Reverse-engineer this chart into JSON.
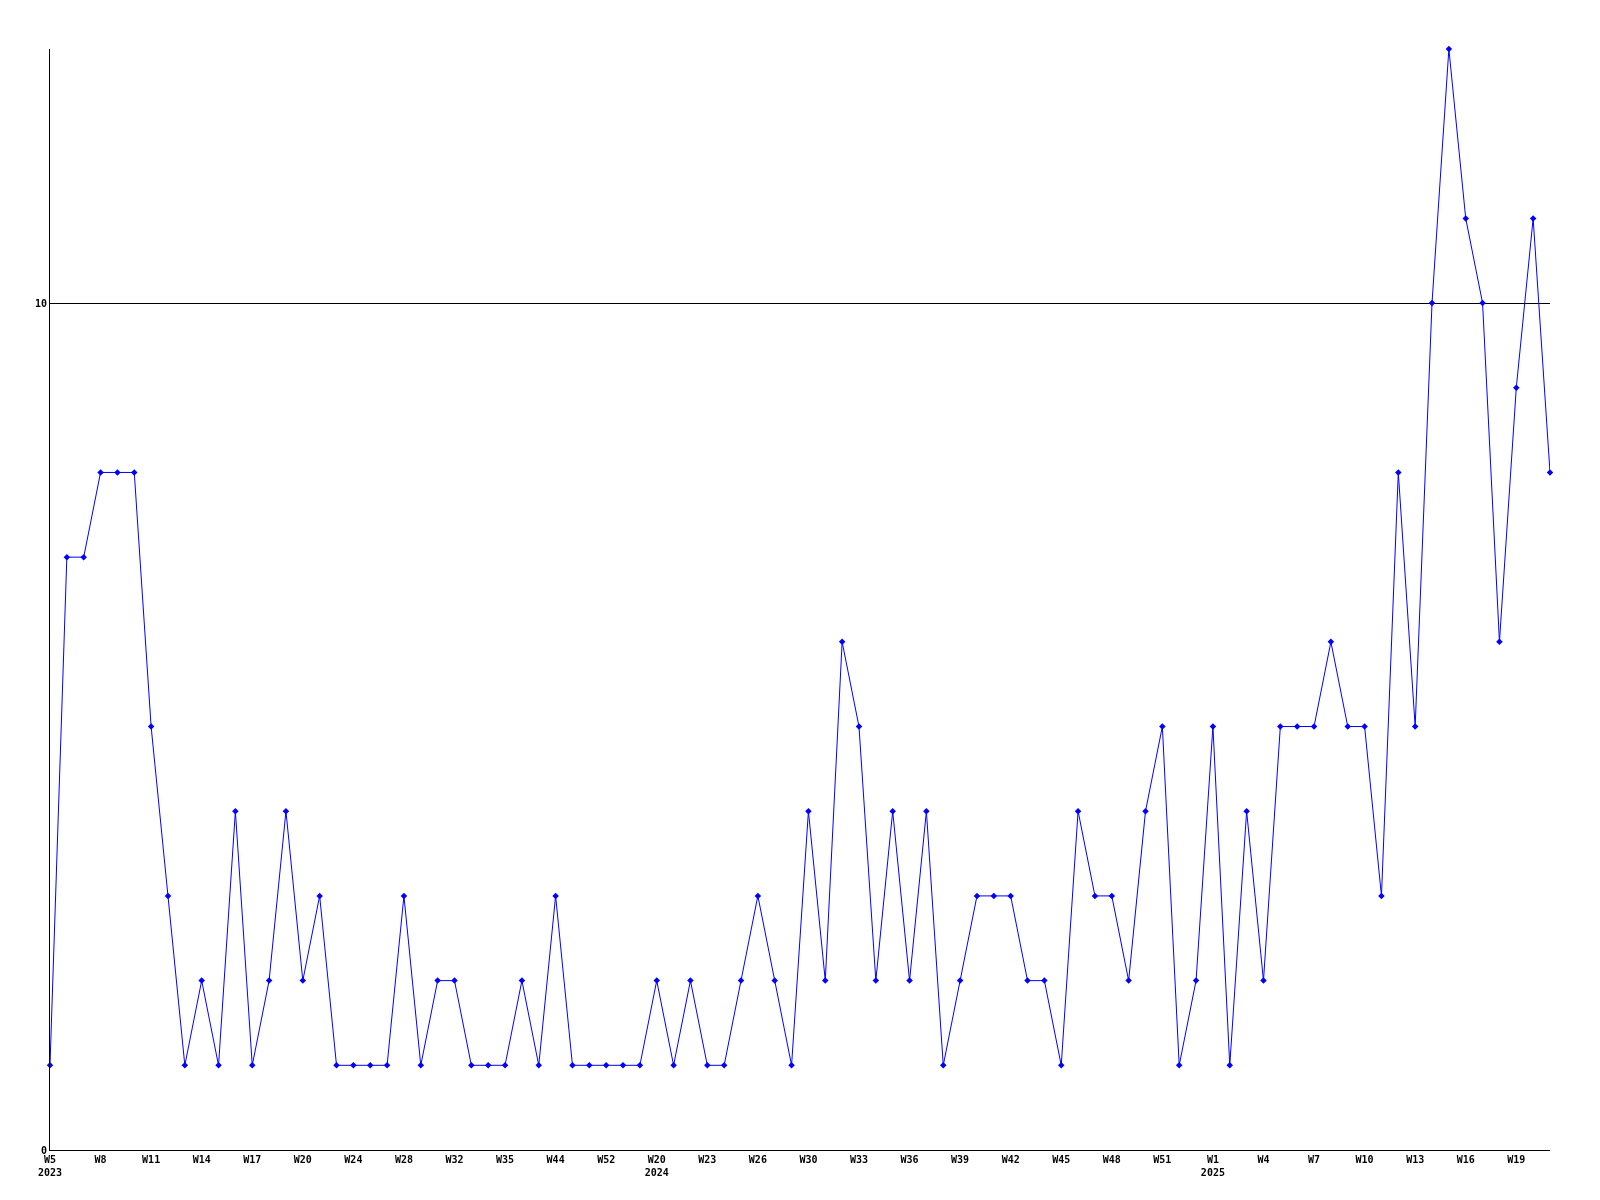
{
  "chart_data": {
    "type": "line",
    "categories": [
      "W5\n2023",
      null,
      null,
      "W8",
      null,
      null,
      "W11",
      null,
      null,
      "W14",
      null,
      null,
      "W17",
      null,
      null,
      "W20",
      null,
      null,
      "W24",
      null,
      null,
      "W28",
      null,
      null,
      "W32",
      null,
      null,
      "W35",
      null,
      null,
      "W44",
      null,
      null,
      "W52",
      null,
      null,
      "W20\n2024",
      null,
      null,
      "W23",
      null,
      null,
      "W26",
      null,
      null,
      "W30",
      null,
      null,
      "W33",
      null,
      null,
      "W36",
      null,
      null,
      "W39",
      null,
      null,
      "W42",
      null,
      null,
      "W45",
      null,
      null,
      "W48",
      null,
      null,
      "W51",
      null,
      null,
      "W1\n2025",
      null,
      null,
      "W4",
      null,
      null,
      "W7",
      null,
      null,
      "W10",
      null,
      null,
      "W13",
      null,
      null,
      "W16",
      null,
      null,
      "W19",
      null,
      null
    ],
    "series": [
      {
        "color": "#0000ff",
        "values": [
          1,
          7,
          7,
          8,
          8,
          8,
          5,
          3,
          1,
          2,
          1,
          4,
          1,
          2,
          4,
          2,
          3,
          1,
          1,
          1,
          1,
          3,
          1,
          2,
          2,
          1,
          1,
          1,
          2,
          1,
          3,
          1,
          1,
          1,
          1,
          1,
          2,
          1,
          2,
          1,
          1,
          2,
          3,
          2,
          1,
          4,
          2,
          6,
          5,
          2,
          4,
          2,
          4,
          1,
          2,
          3,
          3,
          3,
          2,
          2,
          1,
          4,
          3,
          3,
          2,
          4,
          5,
          1,
          2,
          5,
          1,
          4,
          2,
          5,
          5,
          5,
          6,
          5,
          5,
          3,
          8,
          5,
          10,
          13,
          11,
          10,
          6,
          9,
          11,
          8
        ]
      }
    ],
    "ylim": [
      0,
      13
    ],
    "yticks": [
      0,
      10
    ],
    "grid": "y",
    "marker": "diamond",
    "line_style": "solid",
    "legend": false
  }
}
